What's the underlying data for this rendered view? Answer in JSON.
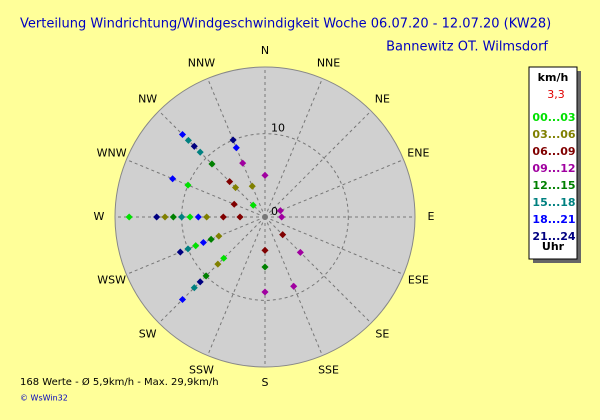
{
  "chart_data": {
    "type": "polar-scatter",
    "title": "Verteilung Windrichtung/Windgeschwindigkeit  Woche 06.07.20 - 12.07.20 (KW28)",
    "subtitle": "Bannewitz OT. Wilmsdorf",
    "directions": [
      "N",
      "NNE",
      "NE",
      "ENE",
      "E",
      "ESE",
      "SE",
      "SSE",
      "S",
      "SSW",
      "SW",
      "WSW",
      "W",
      "WNW",
      "NW",
      "NNW"
    ],
    "rlim": [
      0,
      18
    ],
    "rticks": [
      0,
      10
    ],
    "legend_title": "km/h",
    "calm": "3,3",
    "legend_footer": "Uhr",
    "series": [
      {
        "name": "00...03",
        "color": "#00e000",
        "theta": [
          270,
          270,
          292.5,
          247.5,
          225,
          315
        ],
        "r": [
          16.3,
          9,
          10,
          9,
          7,
          2
        ]
      },
      {
        "name": "03...06",
        "color": "#808000",
        "theta": [
          270,
          270,
          247.5,
          315,
          225,
          337.5
        ],
        "r": [
          12,
          7,
          6,
          5,
          8,
          4
        ]
      },
      {
        "name": "06...09",
        "color": "#800000",
        "theta": [
          270,
          270,
          315,
          292.5,
          135,
          180
        ],
        "r": [
          5,
          3,
          6,
          4,
          3,
          4
        ]
      },
      {
        "name": "09...12",
        "color": "#a000a0",
        "theta": [
          157.5,
          180,
          90,
          67.5,
          135,
          0,
          337.5
        ],
        "r": [
          9,
          9,
          2,
          2,
          6,
          5,
          7
        ]
      },
      {
        "name": "12...15",
        "color": "#008000",
        "theta": [
          270,
          225,
          315,
          247.5,
          180
        ],
        "r": [
          11,
          10,
          9,
          7,
          6
        ]
      },
      {
        "name": "15...18",
        "color": "#008080",
        "theta": [
          315,
          270,
          247.5,
          225,
          315
        ],
        "r": [
          13,
          10,
          10,
          12,
          11
        ]
      },
      {
        "name": "18...21",
        "color": "#0000ff",
        "theta": [
          315,
          270,
          247.5,
          337.5,
          225,
          292.5
        ],
        "r": [
          14,
          8,
          8,
          9,
          14,
          12
        ]
      },
      {
        "name": "21...24",
        "color": "#000080",
        "theta": [
          270,
          315,
          337.5,
          225,
          247.5
        ],
        "r": [
          13,
          12,
          10,
          11,
          11
        ]
      }
    ],
    "footer": "168 Werte   -   Ø 5,9km/h  -  Max. 29,9km/h",
    "copyright": "© WsWin32"
  }
}
